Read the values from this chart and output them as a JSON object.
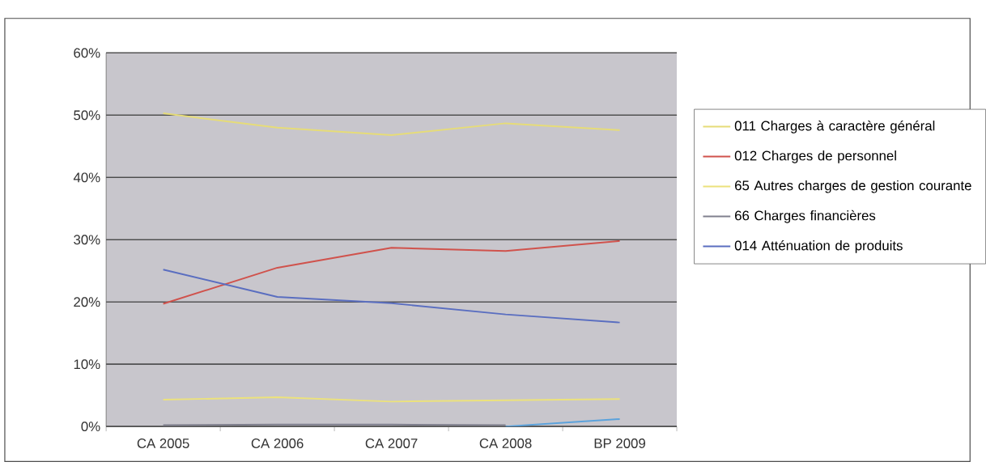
{
  "chart_data": {
    "type": "line",
    "categories": [
      "CA 2005",
      "CA 2006",
      "CA 2007",
      "CA 2008",
      "BP 2009"
    ],
    "series": [
      {
        "name": "011 Charges à caractère général",
        "color": "#e6dc78",
        "values": [
          50.3,
          48.0,
          46.8,
          48.7,
          47.6
        ]
      },
      {
        "name": "012 Charges de personnel",
        "color": "#d0524c",
        "values": [
          19.7,
          25.5,
          28.7,
          28.2,
          29.8
        ]
      },
      {
        "name": "65 Autres charges de gestion courante",
        "color": "#ece27c",
        "values": [
          4.3,
          4.7,
          4.0,
          4.2,
          4.4
        ]
      },
      {
        "name": "66 Charges financières",
        "color": "#80808e",
        "values": [
          0.2,
          0.3,
          0.3,
          0.2,
          null
        ]
      },
      {
        "name": "014 Atténuation de produits",
        "color": "#5a6ec0",
        "values": [
          25.2,
          20.8,
          19.8,
          18.0,
          16.7
        ]
      },
      {
        "color": "#5aa2dc",
        "values": [
          null,
          null,
          null,
          0.0,
          1.2
        ]
      }
    ],
    "ylim": [
      0,
      60
    ],
    "yticks": [
      {
        "value": 0,
        "label": "0%"
      },
      {
        "value": 10,
        "label": "10%"
      },
      {
        "value": 20,
        "label": "20%"
      },
      {
        "value": 30,
        "label": "30%"
      },
      {
        "value": 40,
        "label": "40%"
      },
      {
        "value": 50,
        "label": "50%"
      },
      {
        "value": 60,
        "label": "60%"
      }
    ],
    "grid": "y",
    "legend": "right",
    "marker": "none",
    "line_style": "solid"
  }
}
